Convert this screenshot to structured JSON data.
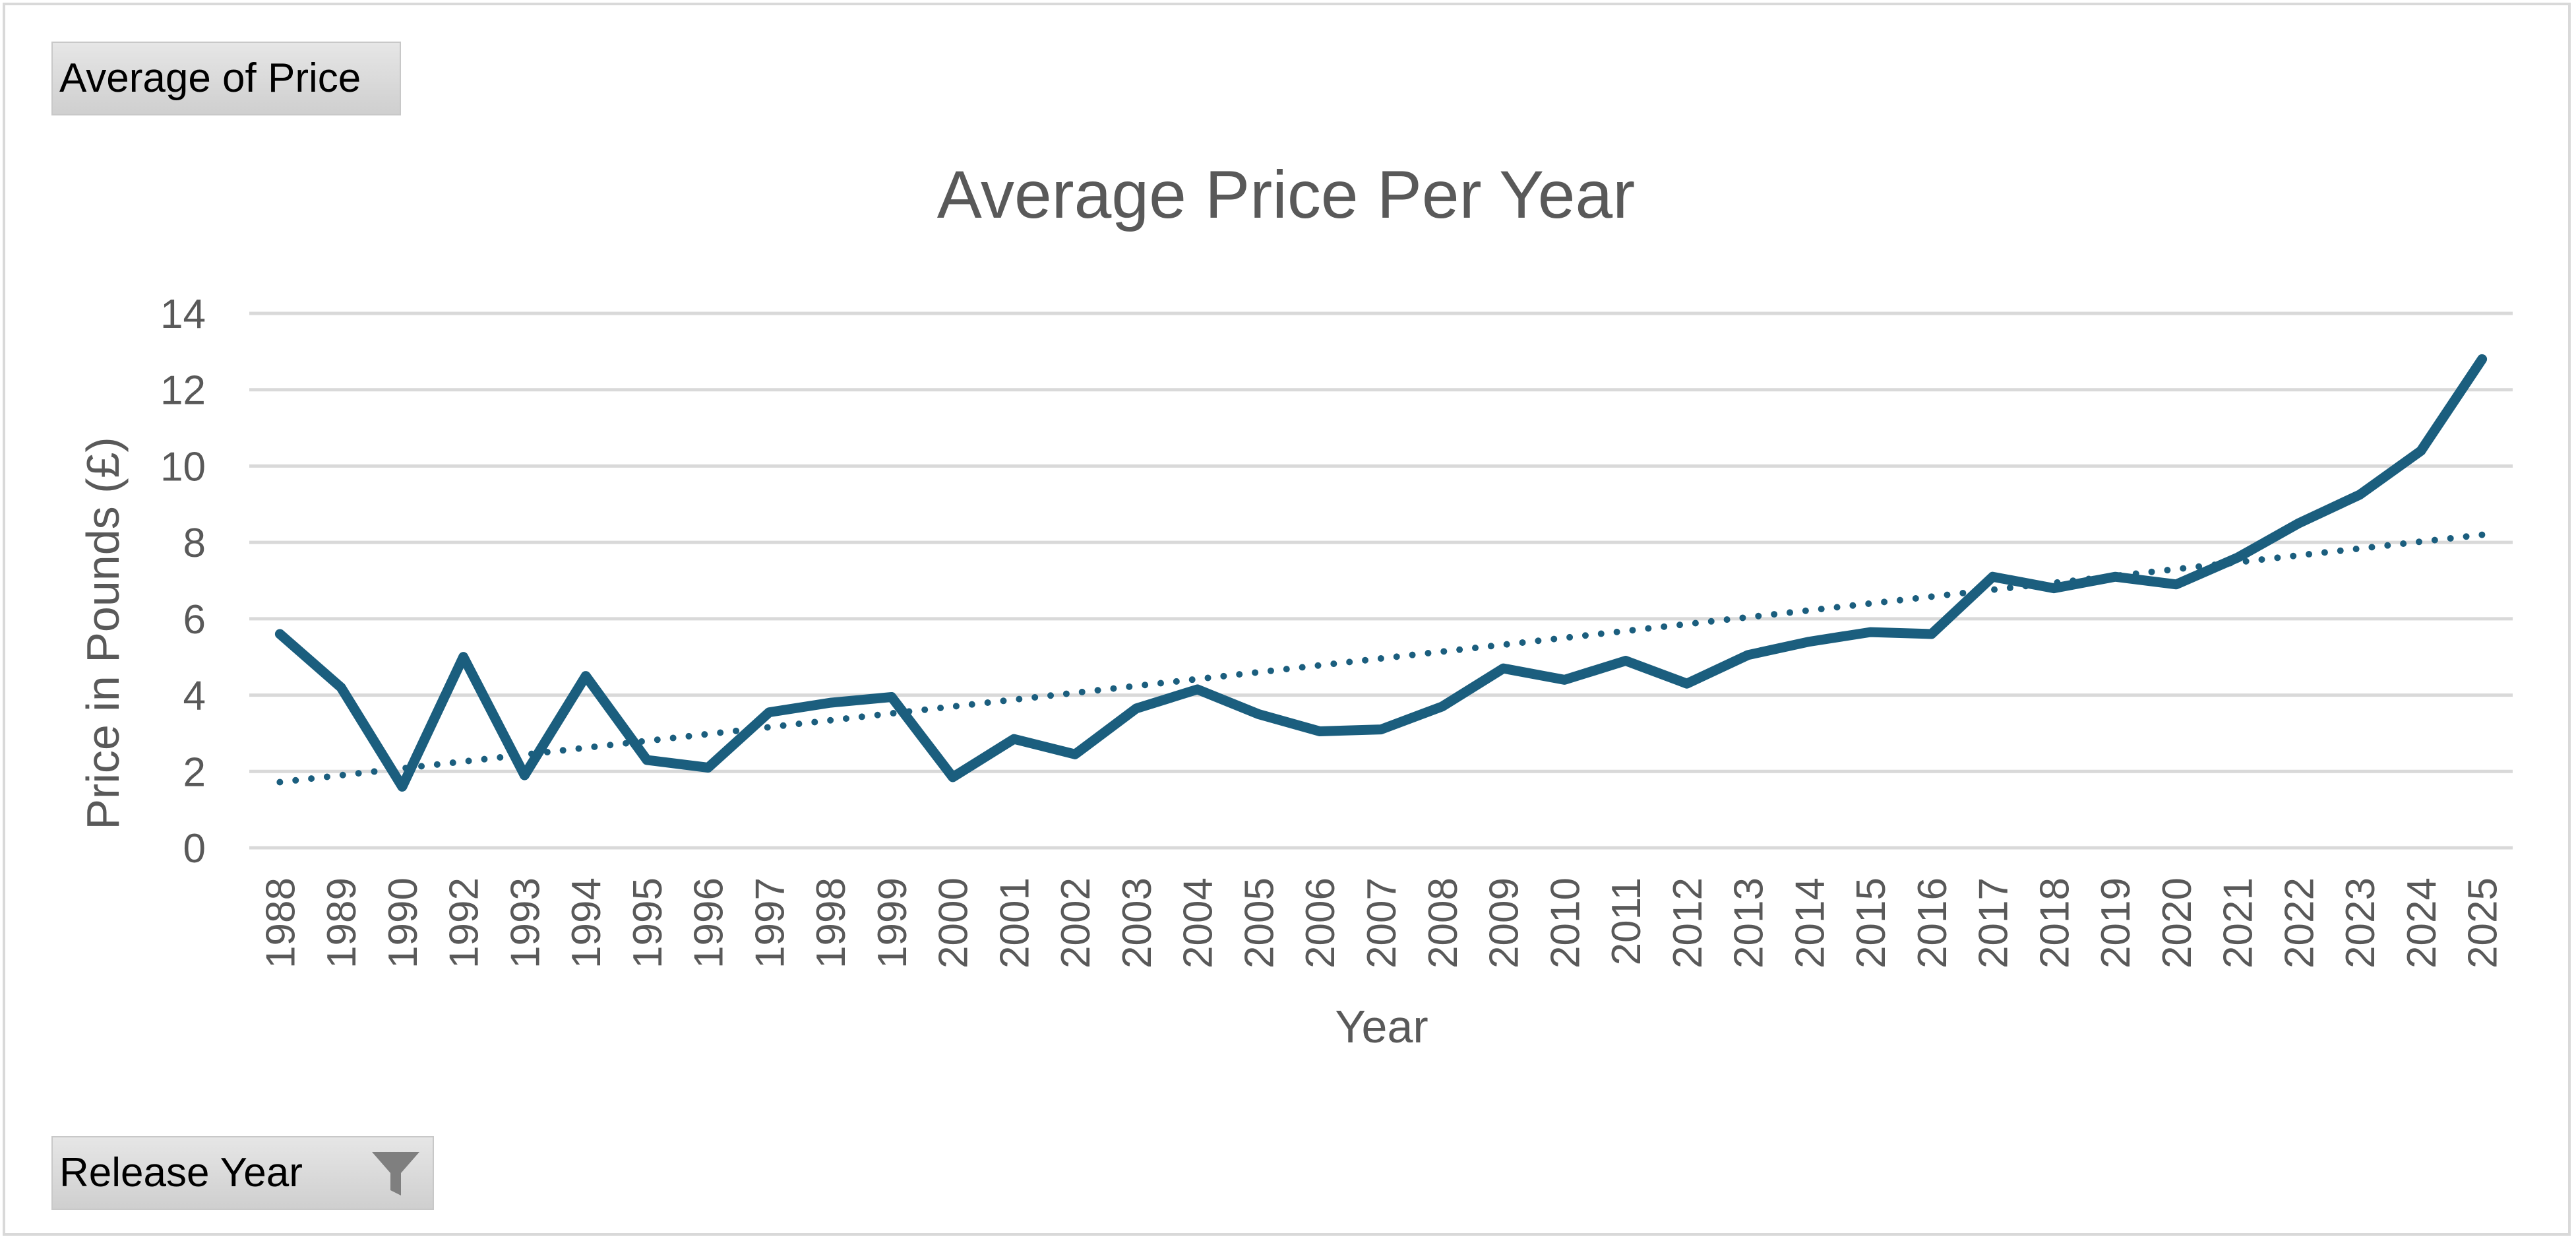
{
  "pivot": {
    "value_field": "Average of Price",
    "row_field": "Release Year"
  },
  "icons": {
    "filter": "funnel-filter-icon"
  },
  "colors": {
    "series": "#1b5e7e",
    "trendline": "#1b5e7e",
    "grid": "#d9d9d9",
    "text": "#595959"
  },
  "chart_data": {
    "type": "line",
    "title": "Average Price Per Year",
    "xlabel": "Year",
    "ylabel": "Price in Pounds (£)",
    "ylim": [
      0,
      14
    ],
    "yticks": [
      0,
      2,
      4,
      6,
      8,
      10,
      12,
      14
    ],
    "grid": true,
    "legend": "none",
    "categories": [
      "1988",
      "1989",
      "1990",
      "1992",
      "1993",
      "1994",
      "1995",
      "1996",
      "1997",
      "1998",
      "1999",
      "2000",
      "2001",
      "2002",
      "2003",
      "2004",
      "2005",
      "2006",
      "2007",
      "2008",
      "2009",
      "2010",
      "2011",
      "2012",
      "2013",
      "2014",
      "2015",
      "2016",
      "2017",
      "2018",
      "2019",
      "2020",
      "2021",
      "2022",
      "2023",
      "2024",
      "2025"
    ],
    "series": [
      {
        "values": [
          5.6,
          4.2,
          1.6,
          5.0,
          1.9,
          4.5,
          2.3,
          2.1,
          3.55,
          3.8,
          3.95,
          1.85,
          2.85,
          2.45,
          3.65,
          4.15,
          3.5,
          3.05,
          3.1,
          3.7,
          4.7,
          4.4,
          4.9,
          4.3,
          5.05,
          5.4,
          5.65,
          5.6,
          7.1,
          6.8,
          7.1,
          6.9,
          7.6,
          8.5,
          9.25,
          10.4,
          12.8
        ]
      }
    ],
    "trendline": {
      "type": "linear",
      "start": 1.72,
      "end": 8.2
    }
  }
}
